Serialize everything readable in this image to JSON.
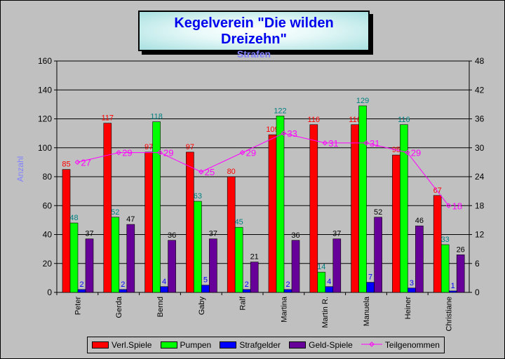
{
  "chart_data": {
    "type": "bar",
    "title": "Kegelverein \"Die wilden Dreizehn\"",
    "subtitle": "Strafen",
    "ylabel": "Anzahl",
    "ylim": [
      0,
      160
    ],
    "y_ticks": [
      "0",
      "20",
      "40",
      "60",
      "80",
      "100",
      "120",
      "140",
      "160"
    ],
    "y2lim": [
      0,
      48
    ],
    "y2_ticks": [
      "0",
      "6",
      "12",
      "18",
      "24",
      "30",
      "36",
      "42",
      "48"
    ],
    "grid": true,
    "legend_position": "bottom",
    "categories": [
      "Peter",
      "Gerda",
      "Bernd",
      "Gaby",
      "Ralf",
      "Martina",
      "Martin R.",
      "Manuela",
      "Heiner",
      "Christiane"
    ],
    "series": [
      {
        "name": "Verl.Spiele",
        "type": "bar",
        "color": "#ff0000",
        "label_color": "#ff0000",
        "values": [
          85,
          117,
          97,
          97,
          80,
          109,
          116,
          116,
          95,
          67
        ]
      },
      {
        "name": "Pumpen",
        "type": "bar",
        "color": "#00ff00",
        "label_color": "#008080",
        "values": [
          48,
          52,
          118,
          63,
          45,
          122,
          14,
          129,
          116,
          33
        ]
      },
      {
        "name": "Strafgelder",
        "type": "bar",
        "color": "#0000ff",
        "label_color": "#0000ff",
        "values": [
          2,
          2,
          4,
          5,
          2,
          2,
          4,
          7,
          3,
          1
        ]
      },
      {
        "name": "Geld-Spiele",
        "type": "bar",
        "color": "#660099",
        "label_color": "#000000",
        "values": [
          37,
          47,
          36,
          37,
          21,
          36,
          37,
          52,
          46,
          26
        ]
      },
      {
        "name": "Teilgenommen",
        "type": "line",
        "axis": "secondary",
        "color": "#ff00ff",
        "label_color": "#ff00ff",
        "values": [
          27,
          29,
          29,
          25,
          29,
          33,
          31,
          31,
          29,
          18
        ]
      }
    ]
  }
}
